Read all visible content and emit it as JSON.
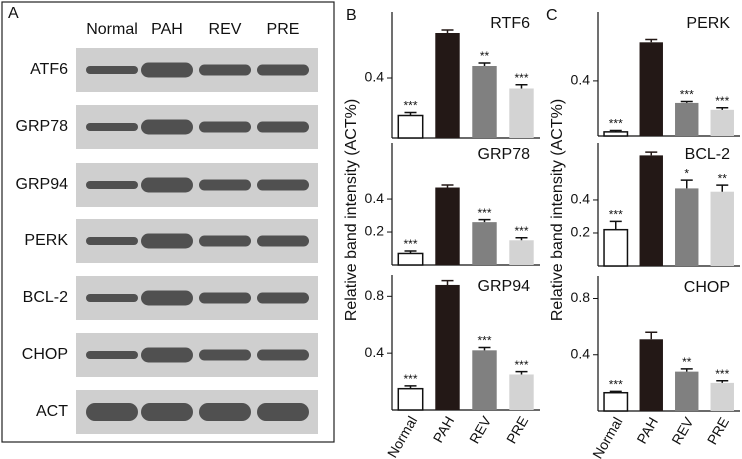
{
  "panel_a": {
    "label": "A",
    "lanes": [
      "Normal",
      "PAH",
      "REV",
      "PRE"
    ],
    "rows": [
      "ATF6",
      "GRP78",
      "GRP94",
      "PERK",
      "BCL-2",
      "CHOP",
      "ACT"
    ]
  },
  "panel_b": {
    "label": "B",
    "ylabel": "Relative band intensity (ACT%)"
  },
  "panel_c": {
    "label": "C",
    "ylabel": "Relative band intensity (ACT%)"
  },
  "chart_data": [
    {
      "type": "bar",
      "title": "RTF6",
      "values": [
        0.15,
        0.7,
        0.48,
        0.33
      ],
      "errors": [
        0.02,
        0.02,
        0.02,
        0.025
      ],
      "colors": [
        "#ffffff",
        "#231816",
        "#808080",
        "#d3d3d3"
      ],
      "annotations": [
        "***",
        null,
        "**",
        "***"
      ],
      "ylim": [
        0,
        0.84
      ],
      "yticks": [
        0.4
      ]
    },
    {
      "type": "bar",
      "title": "GRP78",
      "values": [
        0.07,
        0.47,
        0.26,
        0.15
      ],
      "errors": [
        0.015,
        0.015,
        0.015,
        0.015
      ],
      "colors": [
        "#ffffff",
        "#231816",
        "#808080",
        "#d3d3d3"
      ],
      "annotations": [
        "***",
        null,
        "***",
        "***"
      ],
      "ylim": [
        0,
        0.74
      ],
      "yticks": [
        0.2,
        0.4
      ]
    },
    {
      "type": "bar",
      "title": "GRP94",
      "categories": [
        "Normal",
        "PAH",
        "REV",
        "PRE"
      ],
      "values": [
        0.15,
        0.88,
        0.42,
        0.25
      ],
      "errors": [
        0.02,
        0.03,
        0.02,
        0.02
      ],
      "colors": [
        "#ffffff",
        "#231816",
        "#808080",
        "#d3d3d3"
      ],
      "annotations": [
        "***",
        null,
        "***",
        "***"
      ],
      "ylim": [
        0,
        0.95
      ],
      "yticks": [
        0.4,
        0.8
      ]
    },
    {
      "type": "bar",
      "title": "PERK",
      "values": [
        0.03,
        0.68,
        0.24,
        0.19
      ],
      "errors": [
        0.01,
        0.02,
        0.01,
        0.015
      ],
      "colors": [
        "#ffffff",
        "#231816",
        "#808080",
        "#d3d3d3"
      ],
      "annotations": [
        "***",
        null,
        "***",
        "***"
      ],
      "ylim": [
        0,
        0.9
      ],
      "yticks": [
        0.4
      ]
    },
    {
      "type": "bar",
      "title": "BCL-2",
      "values": [
        0.22,
        0.67,
        0.47,
        0.45
      ],
      "errors": [
        0.05,
        0.02,
        0.05,
        0.04
      ],
      "colors": [
        "#ffffff",
        "#231816",
        "#808080",
        "#d3d3d3"
      ],
      "annotations": [
        "***",
        null,
        "*",
        "**"
      ],
      "ylim": [
        0,
        0.745
      ],
      "yticks": [
        0.2,
        0.4
      ]
    },
    {
      "type": "bar",
      "title": "CHOP",
      "categories": [
        "Normal",
        "PAH",
        "REV",
        "PRE"
      ],
      "values": [
        0.13,
        0.51,
        0.28,
        0.2
      ],
      "errors": [
        0.01,
        0.05,
        0.02,
        0.015
      ],
      "colors": [
        "#ffffff",
        "#231816",
        "#808080",
        "#d3d3d3"
      ],
      "annotations": [
        "***",
        null,
        "**",
        "***"
      ],
      "ylim": [
        0,
        0.96
      ],
      "yticks": [
        0.4,
        0.8
      ]
    }
  ]
}
